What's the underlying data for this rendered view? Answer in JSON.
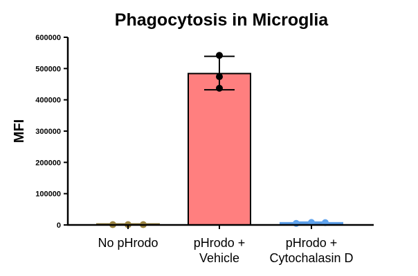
{
  "chart_data": {
    "type": "bar",
    "title": "Phagocytosis in Microglia",
    "xlabel": "",
    "ylabel": "MFI",
    "ylim": [
      0,
      600000
    ],
    "yticks": [
      {
        "value": 0,
        "label": "0"
      },
      {
        "value": 100000,
        "label": "100000"
      },
      {
        "value": 200000,
        "label": "200000"
      },
      {
        "value": 300000,
        "label": "300000"
      },
      {
        "value": 400000,
        "label": "400000"
      },
      {
        "value": 500000,
        "label": "500000"
      },
      {
        "value": 600000,
        "label": "600000"
      }
    ],
    "categories": [
      {
        "lines": [
          "No pHrodo"
        ]
      },
      {
        "lines": [
          "pHrodo +",
          "Vehicle"
        ]
      },
      {
        "lines": [
          "pHrodo +",
          "Cytochalasin D"
        ]
      }
    ],
    "values": [
      1500,
      484000,
      7000
    ],
    "error": [
      {
        "low": 1000,
        "high": 2000
      },
      {
        "low": 432000,
        "high": 539000
      },
      {
        "low": 5000,
        "high": 9000
      }
    ],
    "points": [
      [
        1000,
        1000,
        1000
      ],
      [
        437000,
        474000,
        542000
      ],
      [
        5000,
        8000,
        7500
      ]
    ],
    "colors": {
      "bars": [
        "#8c7a3c",
        "#ff7f7f",
        "#5b9ee8"
      ],
      "points": [
        "#9c8540",
        "#000000",
        "#5fa3ee"
      ]
    },
    "grid": false,
    "legend": "none"
  }
}
